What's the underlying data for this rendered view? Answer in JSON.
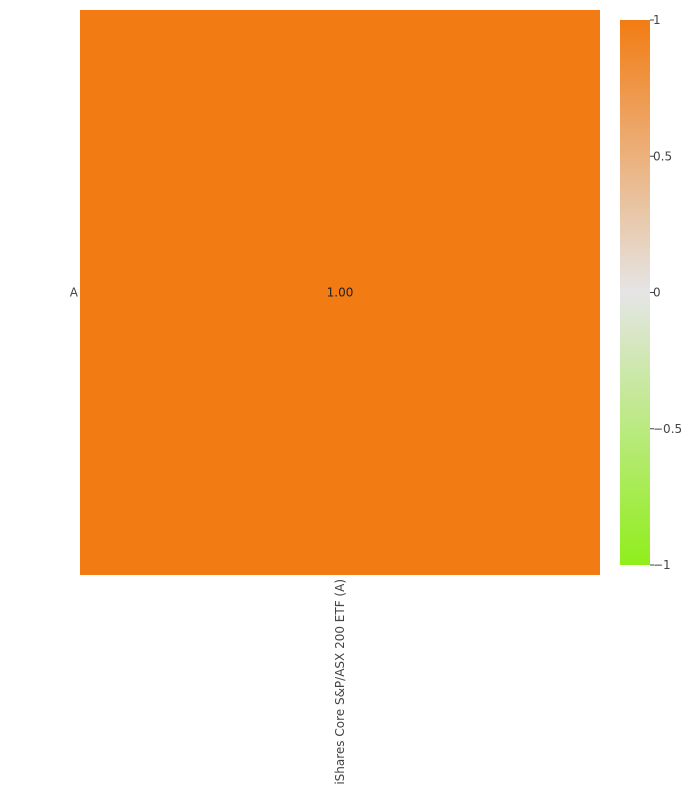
{
  "chart_data": {
    "type": "heatmap",
    "x": [
      "iShares Core S&P/ASX 200 ETF (A)"
    ],
    "y": [
      "A"
    ],
    "z": [
      [
        1.0
      ]
    ],
    "annotations": [
      [
        "1.00"
      ]
    ],
    "colorscale": [
      [
        0.0,
        "#90ee1b"
      ],
      [
        0.5,
        "#e5e5e5"
      ],
      [
        1.0,
        "#f27c13"
      ]
    ],
    "zmin": -1,
    "zmax": 1,
    "colorbar": {
      "ticks": [
        1,
        0.5,
        0,
        -0.5,
        -1
      ],
      "tick_labels": [
        "1",
        "0.5",
        "0",
        "−0.5",
        "−1"
      ]
    }
  }
}
